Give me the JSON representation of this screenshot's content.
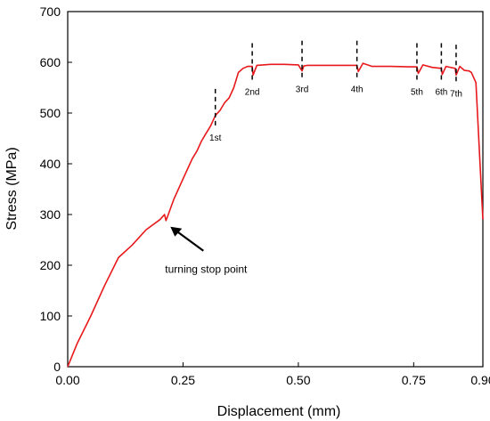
{
  "chart_data": {
    "type": "line",
    "xlabel": "Displacement (mm)",
    "ylabel": "Stress (MPa)",
    "xlim": [
      0,
      0.9
    ],
    "ylim": [
      0,
      700
    ],
    "x_ticks": [
      0.0,
      0.25,
      0.5,
      0.75,
      0.9
    ],
    "x_tick_labels": [
      "0.00",
      "0.25",
      "0.50",
      "0.75",
      "0.90"
    ],
    "y_ticks": [
      0,
      100,
      200,
      300,
      400,
      500,
      600,
      700
    ],
    "y_tick_labels": [
      "0",
      "100",
      "200",
      "300",
      "400",
      "500",
      "600",
      "700"
    ],
    "grid": false,
    "series": [
      {
        "color": "#e8191c",
        "x": [
          0.0,
          0.02,
          0.05,
          0.08,
          0.11,
          0.14,
          0.17,
          0.2,
          0.21,
          0.213,
          0.218,
          0.23,
          0.25,
          0.27,
          0.28,
          0.29,
          0.3,
          0.31,
          0.32,
          0.33,
          0.34,
          0.35,
          0.36,
          0.37,
          0.38,
          0.39,
          0.4,
          0.402,
          0.41,
          0.44,
          0.47,
          0.5,
          0.508,
          0.512,
          0.52,
          0.56,
          0.6,
          0.627,
          0.63,
          0.64,
          0.66,
          0.7,
          0.74,
          0.757,
          0.76,
          0.77,
          0.79,
          0.81,
          0.812,
          0.82,
          0.84,
          0.842,
          0.85,
          0.86,
          0.87,
          0.875,
          0.885,
          0.9
        ],
        "y": [
          0,
          45,
          100,
          160,
          215,
          240,
          270,
          290,
          300,
          288,
          300,
          330,
          370,
          410,
          425,
          445,
          460,
          475,
          495,
          505,
          520,
          530,
          550,
          580,
          588,
          592,
          592,
          575,
          594,
          596,
          596,
          595,
          583,
          593,
          594,
          594,
          594,
          594,
          582,
          598,
          592,
          592,
          591,
          591,
          578,
          595,
          590,
          588,
          576,
          592,
          588,
          575,
          592,
          584,
          583,
          580,
          560,
          290
        ]
      }
    ],
    "stops": [
      {
        "label": "1st",
        "x": 0.32,
        "y": 495
      },
      {
        "label": "2nd",
        "x": 0.4,
        "y": 585
      },
      {
        "label": "3rd",
        "x": 0.508,
        "y": 590
      },
      {
        "label": "4th",
        "x": 0.627,
        "y": 590
      },
      {
        "label": "5th",
        "x": 0.757,
        "y": 585
      },
      {
        "label": "6th",
        "x": 0.81,
        "y": 585
      },
      {
        "label": "7th",
        "x": 0.842,
        "y": 582
      }
    ],
    "annotation": {
      "text": "turning stop point",
      "x": 0.213,
      "y": 290
    }
  }
}
